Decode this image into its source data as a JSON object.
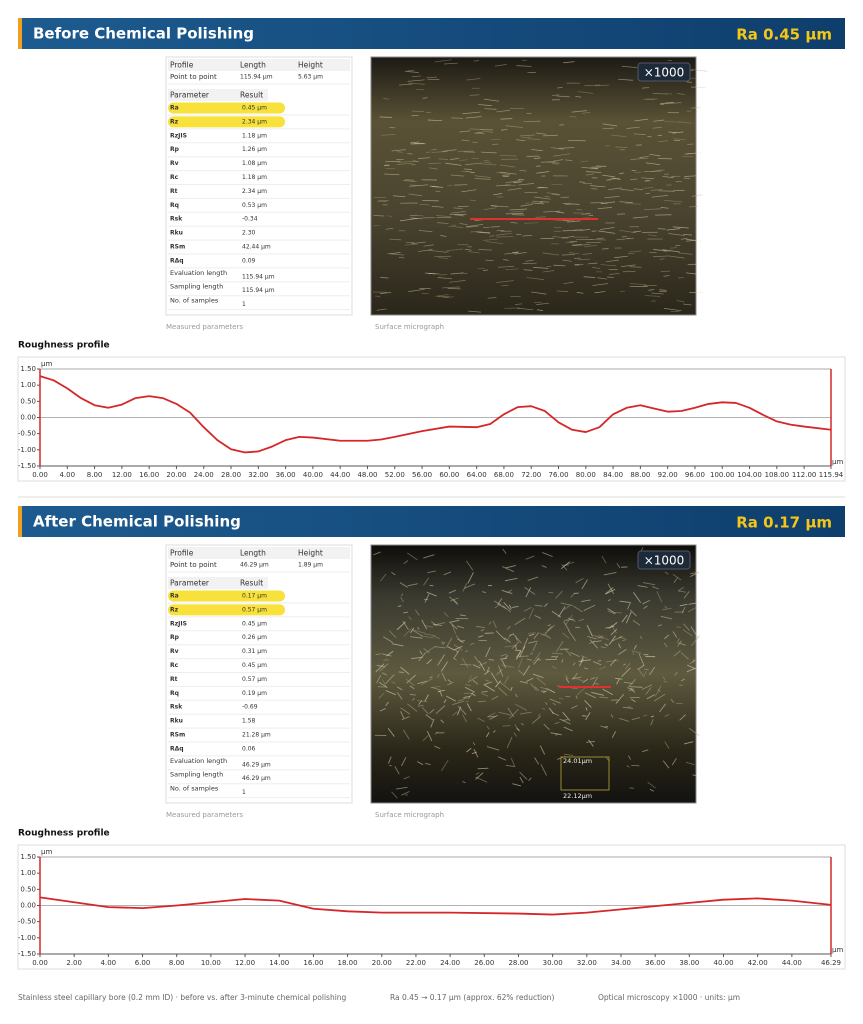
{
  "sections": [
    {
      "title": "Before Chemical Polishing",
      "ra_badge": "Ra 0.45 µm",
      "table": {
        "header": [
          "Profile",
          "Length",
          "Height"
        ],
        "point_row": [
          "Point to point",
          "115.94 µm",
          "5.63 µm"
        ],
        "param_header": [
          "Parameter",
          "Result"
        ],
        "highlighted_rows": [
          0,
          1
        ],
        "rows": [
          [
            "Ra",
            "0.45 µm"
          ],
          [
            "Rz",
            "2.34 µm"
          ],
          [
            "RzJIS",
            "1.18 µm"
          ],
          [
            "Rp",
            "1.26 µm"
          ],
          [
            "Rv",
            "1.08 µm"
          ],
          [
            "Rc",
            "1.18 µm"
          ],
          [
            "Rt",
            "2.34 µm"
          ],
          [
            "Rq",
            "0.53 µm"
          ],
          [
            "Rsk",
            "-0.34"
          ],
          [
            "Rku",
            "2.30"
          ],
          [
            "RSm",
            "42.44 µm"
          ],
          [
            "RΔq",
            "0.09"
          ],
          [
            "Evaluation length",
            "115.94 µm"
          ],
          [
            "Sampling length",
            "115.94 µm"
          ],
          [
            "No. of samples",
            "1"
          ]
        ]
      },
      "table_caption": "Measured parameters",
      "micrograph": {
        "magnification": "×1000"
      },
      "micrograph_caption": "Surface micrograph",
      "profile_title": "Roughness profile",
      "chart_data": {
        "type": "line",
        "y_unit": "µm",
        "x_unit": "µm",
        "x": [
          0,
          2,
          4,
          6,
          8,
          10,
          12,
          14,
          16,
          18,
          20,
          22,
          24,
          26,
          28,
          30,
          32,
          34,
          36,
          38,
          40,
          44,
          48,
          50,
          52,
          56,
          60,
          64,
          66,
          68,
          70,
          72,
          74,
          76,
          78,
          80,
          82,
          84,
          86,
          88,
          90,
          92,
          94,
          96,
          98,
          100,
          102,
          104,
          106,
          108,
          110,
          112,
          115.94
        ],
        "series": [
          {
            "color": "#d62728",
            "values": [
              1.28,
              1.15,
              0.9,
              0.6,
              0.38,
              0.3,
              0.4,
              0.6,
              0.66,
              0.6,
              0.42,
              0.15,
              -0.3,
              -0.7,
              -0.98,
              -1.08,
              -1.05,
              -0.9,
              -0.7,
              -0.6,
              -0.62,
              -0.72,
              -0.72,
              -0.68,
              -0.6,
              -0.42,
              -0.28,
              -0.3,
              -0.2,
              0.1,
              0.32,
              0.35,
              0.2,
              -0.15,
              -0.38,
              -0.45,
              -0.3,
              0.1,
              0.3,
              0.38,
              0.28,
              0.18,
              0.2,
              0.3,
              0.42,
              0.47,
              0.45,
              0.3,
              0.08,
              -0.12,
              -0.22,
              -0.28,
              -0.38
            ]
          }
        ],
        "xlim": [
          0,
          115.94
        ],
        "ylim": [
          -1.5,
          1.5
        ],
        "xticks": [
          {
            "value": 0,
            "label": "0.00"
          },
          {
            "value": 4,
            "label": "4.00"
          },
          {
            "value": 8,
            "label": "8.00"
          },
          {
            "value": 12,
            "label": "12.00"
          },
          {
            "value": 16,
            "label": "16.00"
          },
          {
            "value": 20,
            "label": "20.00"
          },
          {
            "value": 24,
            "label": "24.00"
          },
          {
            "value": 28,
            "label": "28.00"
          },
          {
            "value": 32,
            "label": "32.00"
          },
          {
            "value": 36,
            "label": "36.00"
          },
          {
            "value": 40,
            "label": "40.00"
          },
          {
            "value": 44,
            "label": "44.00"
          },
          {
            "value": 48,
            "label": "48.00"
          },
          {
            "value": 52,
            "label": "52.00"
          },
          {
            "value": 56,
            "label": "56.00"
          },
          {
            "value": 60,
            "label": "60.00"
          },
          {
            "value": 64,
            "label": "64.00"
          },
          {
            "value": 68,
            "label": "68.00"
          },
          {
            "value": 72,
            "label": "72.00"
          },
          {
            "value": 76,
            "label": "76.00"
          },
          {
            "value": 80,
            "label": "80.00"
          },
          {
            "value": 84,
            "label": "84.00"
          },
          {
            "value": 88,
            "label": "88.00"
          },
          {
            "value": 92,
            "label": "92.00"
          },
          {
            "value": 96,
            "label": "96.00"
          },
          {
            "value": 100,
            "label": "100.00"
          },
          {
            "value": 104,
            "label": "104.00"
          },
          {
            "value": 108,
            "label": "108.00"
          },
          {
            "value": 112,
            "label": "112.00"
          },
          115.94
        ],
        "yticks": [
          {
            "value": -1.5,
            "label": "-1.50"
          },
          {
            "value": -1,
            "label": "-1.00"
          },
          {
            "value": -0.5,
            "label": "-0.50"
          },
          {
            "value": 0,
            "label": "0.00"
          },
          {
            "value": 0.5,
            "label": "0.50"
          },
          {
            "value": 1,
            "label": "1.00"
          },
          {
            "value": 1.5,
            "label": "1.50"
          }
        ]
      }
    },
    {
      "title": "After Chemical Polishing",
      "ra_badge": "Ra 0.17 µm",
      "table": {
        "header": [
          "Profile",
          "Length",
          "Height"
        ],
        "point_row": [
          "Point to point",
          "46.29 µm",
          "1.89 µm"
        ],
        "param_header": [
          "Parameter",
          "Result"
        ],
        "highlighted_rows": [
          0,
          1
        ],
        "rows": [
          [
            "Ra",
            "0.17 µm"
          ],
          [
            "Rz",
            "0.57 µm"
          ],
          [
            "RzJIS",
            "0.45 µm"
          ],
          [
            "Rp",
            "0.26 µm"
          ],
          [
            "Rv",
            "0.31 µm"
          ],
          [
            "Rc",
            "0.45 µm"
          ],
          [
            "Rt",
            "0.57 µm"
          ],
          [
            "Rq",
            "0.19 µm"
          ],
          [
            "Rsk",
            "-0.69"
          ],
          [
            "Rku",
            "1.58"
          ],
          [
            "RSm",
            "21.28 µm"
          ],
          [
            "RΔq",
            "0.06"
          ],
          [
            "Evaluation length",
            "46.29 µm"
          ],
          [
            "Sampling length",
            "46.29 µm"
          ],
          [
            "No. of samples",
            "1"
          ]
        ]
      },
      "table_caption": "Measured parameters",
      "micrograph": {
        "magnification": "×1000",
        "scale_labels": [
          "24.01µm",
          "22.12µm"
        ]
      },
      "micrograph_caption": "Surface micrograph",
      "profile_title": "Roughness profile",
      "chart_data": {
        "type": "line",
        "y_unit": "µm",
        "x_unit": "µm",
        "x": [
          0,
          2,
          4,
          6,
          8,
          10,
          12,
          14,
          16,
          18,
          20,
          24,
          28,
          30,
          32,
          34,
          36,
          38,
          40,
          42,
          44,
          46.29
        ],
        "series": [
          {
            "color": "#d62728",
            "values": [
              0.25,
              0.1,
              -0.05,
              -0.08,
              0,
              0.1,
              0.2,
              0.15,
              -0.1,
              -0.18,
              -0.22,
              -0.22,
              -0.25,
              -0.28,
              -0.22,
              -0.12,
              -0.02,
              0.08,
              0.18,
              0.22,
              0.15,
              0.02
            ]
          }
        ],
        "xlim": [
          0,
          46.29
        ],
        "ylim": [
          -1.5,
          1.5
        ],
        "xticks": [
          {
            "value": 0,
            "label": "0.00"
          },
          {
            "value": 2,
            "label": "2.00"
          },
          {
            "value": 4,
            "label": "4.00"
          },
          {
            "value": 6,
            "label": "6.00"
          },
          {
            "value": 8,
            "label": "8.00"
          },
          {
            "value": 10,
            "label": "10.00"
          },
          {
            "value": 12,
            "label": "12.00"
          },
          {
            "value": 14,
            "label": "14.00"
          },
          {
            "value": 16,
            "label": "16.00"
          },
          {
            "value": 18,
            "label": "18.00"
          },
          {
            "value": 20,
            "label": "20.00"
          },
          {
            "value": 22,
            "label": "22.00"
          },
          {
            "value": 24,
            "label": "24.00"
          },
          {
            "value": 26,
            "label": "26.00"
          },
          {
            "value": 28,
            "label": "28.00"
          },
          {
            "value": 30,
            "label": "30.00"
          },
          {
            "value": 32,
            "label": "32.00"
          },
          {
            "value": 34,
            "label": "34.00"
          },
          {
            "value": 36,
            "label": "36.00"
          },
          {
            "value": 38,
            "label": "38.00"
          },
          {
            "value": 40,
            "label": "40.00"
          },
          {
            "value": 42,
            "label": "42.00"
          },
          {
            "value": 44,
            "label": "44.00"
          },
          46.29
        ],
        "yticks": [
          {
            "value": -1.5,
            "label": "-1.50"
          },
          {
            "value": -1,
            "label": "-1.00"
          },
          {
            "value": -0.5,
            "label": "-0.50"
          },
          {
            "value": 0,
            "label": "0.00"
          },
          {
            "value": 0.5,
            "label": "0.50"
          },
          {
            "value": 1,
            "label": "1.00"
          },
          {
            "value": 1.5,
            "label": "1.50"
          }
        ]
      }
    }
  ],
  "footer": [
    "Stainless steel capillary bore (0.2 mm ID) · before vs. after 3-minute chemical polishing",
    "Ra 0.45 → 0.17 µm (approx. 62% reduction)",
    "Optical microscopy ×1000 · units: µm"
  ]
}
